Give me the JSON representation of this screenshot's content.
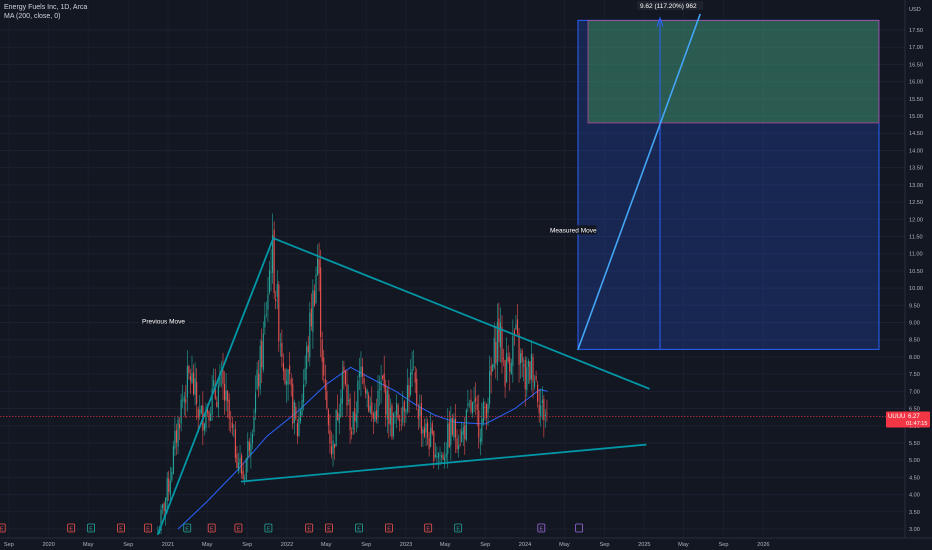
{
  "legend": {
    "title": "Energy Fuels Inc, 1D, Arca",
    "indicator": "MA (200, close, 0)"
  },
  "colors": {
    "background": "#131722",
    "candle_up": "#26a69a",
    "candle_down": "#ef5350",
    "ma_line": "#2962ff",
    "trendline": "#0097a7",
    "projection_box": "#2962ff",
    "target_box": "#4caf50",
    "price_marker": "#f23645"
  },
  "chart_data": {
    "type": "candlestick",
    "symbol": "UUUU",
    "currency": "USD",
    "interval": "1D",
    "ylim": [
      2.8,
      18.2
    ],
    "y_ticks": [
      "3.00",
      "3.50",
      "4.00",
      "4.50",
      "5.00",
      "5.50",
      "6.00",
      "6.50",
      "7.00",
      "7.50",
      "8.00",
      "8.50",
      "9.00",
      "9.50",
      "10.00",
      "10.50",
      "11.00",
      "11.50",
      "12.00",
      "12.50",
      "13.00",
      "13.50",
      "14.00",
      "14.50",
      "15.00",
      "15.50",
      "16.00",
      "16.50",
      "17.00",
      "17.50"
    ],
    "x_ticks": [
      "Sep",
      "2020",
      "May",
      "Sep",
      "2021",
      "May",
      "Sep",
      "2022",
      "May",
      "Sep",
      "2023",
      "May",
      "Sep",
      "2024",
      "May",
      "Sep",
      "2025",
      "May",
      "Sep",
      "2026"
    ],
    "current_price": {
      "symbol": "UUUU",
      "price": "6.27",
      "countdown": "01:47:15"
    },
    "price_path": [
      [
        "2020-12-01",
        2.9
      ],
      [
        "2021-01-05",
        4.4
      ],
      [
        "2021-02-10",
        6.6
      ],
      [
        "2021-03-10",
        7.5
      ],
      [
        "2021-04-10",
        6.2
      ],
      [
        "2021-05-15",
        6.8
      ],
      [
        "2021-06-15",
        7.2
      ],
      [
        "2021-07-20",
        5.6
      ],
      [
        "2021-08-20",
        4.5
      ],
      [
        "2021-09-20",
        6.4
      ],
      [
        "2021-10-20",
        8.4
      ],
      [
        "2021-11-15",
        11.2
      ],
      [
        "2021-12-10",
        8.7
      ],
      [
        "2022-01-05",
        7.2
      ],
      [
        "2022-02-01",
        5.8
      ],
      [
        "2022-03-01",
        7.9
      ],
      [
        "2022-04-05",
        10.9
      ],
      [
        "2022-04-25",
        7.0
      ],
      [
        "2022-05-20",
        5.2
      ],
      [
        "2022-06-20",
        7.6
      ],
      [
        "2022-07-20",
        5.8
      ],
      [
        "2022-08-20",
        7.9
      ],
      [
        "2022-09-20",
        6.1
      ],
      [
        "2022-10-20",
        7.2
      ],
      [
        "2022-11-20",
        6.0
      ],
      [
        "2022-12-20",
        6.6
      ],
      [
        "2023-01-20",
        7.4
      ],
      [
        "2023-02-20",
        6.0
      ],
      [
        "2023-03-20",
        5.5
      ],
      [
        "2023-04-20",
        5.1
      ],
      [
        "2023-05-20",
        5.9
      ],
      [
        "2023-06-20",
        5.7
      ],
      [
        "2023-07-20",
        6.5
      ],
      [
        "2023-08-20",
        6.0
      ],
      [
        "2023-09-20",
        7.4
      ],
      [
        "2023-10-10",
        8.9
      ],
      [
        "2023-11-01",
        7.6
      ],
      [
        "2023-12-01",
        8.6
      ],
      [
        "2024-01-01",
        7.3
      ],
      [
        "2024-01-25",
        7.8
      ],
      [
        "2024-02-20",
        6.5
      ],
      [
        "2024-03-10",
        6.27
      ]
    ],
    "ma200_path": [
      [
        "2021-02-01",
        3.0
      ],
      [
        "2021-05-01",
        3.8
      ],
      [
        "2021-08-01",
        4.7
      ],
      [
        "2021-11-01",
        5.7
      ],
      [
        "2022-02-01",
        6.4
      ],
      [
        "2022-05-01",
        7.2
      ],
      [
        "2022-07-15",
        7.7
      ],
      [
        "2022-10-01",
        7.3
      ],
      [
        "2022-12-01",
        7.0
      ],
      [
        "2023-02-01",
        6.6
      ],
      [
        "2023-04-01",
        6.3
      ],
      [
        "2023-06-01",
        6.1
      ],
      [
        "2023-09-01",
        6.05
      ],
      [
        "2023-12-01",
        6.5
      ],
      [
        "2024-02-15",
        7.05
      ],
      [
        "2024-03-10",
        7.0
      ]
    ],
    "annotations": [
      {
        "text": "Previous Move"
      },
      {
        "text": "Measured Move"
      },
      {
        "text": "9.62 (117.20%) 962"
      }
    ],
    "event_markers": [
      "E",
      "E",
      "E",
      "E",
      "E",
      "E",
      "E",
      "E",
      "E",
      "E",
      "E",
      "E",
      "E",
      "E",
      "E",
      "E"
    ]
  }
}
